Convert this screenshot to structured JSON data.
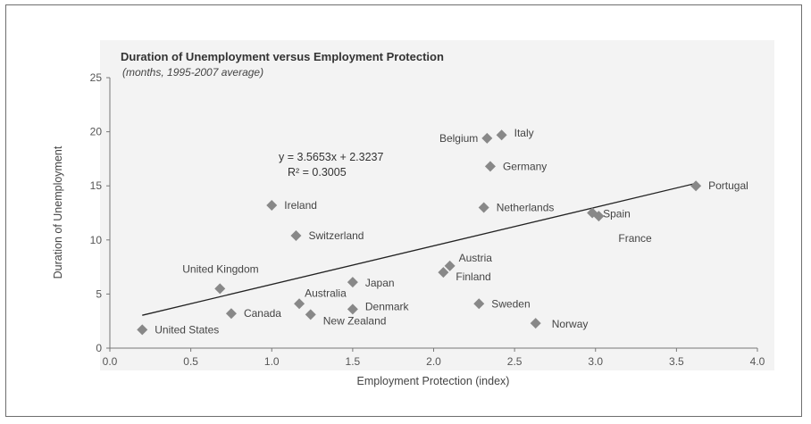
{
  "chart_data": {
    "type": "scatter",
    "title": "Duration of Unemployment versus Employment Protection",
    "subtitle": "(months, 1995-2007 average)",
    "xlabel": "Employment Protection (index)",
    "ylabel": "Duration of Unemployment",
    "xlim": [
      0,
      4
    ],
    "ylim": [
      0,
      25
    ],
    "xticks": [
      "0.0",
      "0.5",
      "1.0",
      "1.5",
      "2.0",
      "2.5",
      "3.0",
      "3.5",
      "4.0"
    ],
    "yticks": [
      "0",
      "5",
      "10",
      "15",
      "20",
      "25"
    ],
    "points": [
      {
        "label": "United States",
        "x": 0.2,
        "y": 1.7
      },
      {
        "label": "United Kingdom",
        "x": 0.68,
        "y": 5.5
      },
      {
        "label": "Canada",
        "x": 0.75,
        "y": 3.2
      },
      {
        "label": "Ireland",
        "x": 1.0,
        "y": 13.2
      },
      {
        "label": "Switzerland",
        "x": 1.15,
        "y": 10.4
      },
      {
        "label": "Australia",
        "x": 1.17,
        "y": 4.1
      },
      {
        "label": "New Zealand",
        "x": 1.24,
        "y": 3.1
      },
      {
        "label": "Japan",
        "x": 1.5,
        "y": 6.1
      },
      {
        "label": "Denmark",
        "x": 1.5,
        "y": 3.6
      },
      {
        "label": "Austria",
        "x": 2.1,
        "y": 7.6
      },
      {
        "label": "Finland",
        "x": 2.06,
        "y": 7.0
      },
      {
        "label": "Belgium",
        "x": 2.33,
        "y": 19.4
      },
      {
        "label": "Italy",
        "x": 2.42,
        "y": 19.7
      },
      {
        "label": "Germany",
        "x": 2.35,
        "y": 16.8
      },
      {
        "label": "Netherlands",
        "x": 2.31,
        "y": 13.0
      },
      {
        "label": "Sweden",
        "x": 2.28,
        "y": 4.1
      },
      {
        "label": "Norway",
        "x": 2.63,
        "y": 2.3
      },
      {
        "label": "Spain",
        "x": 2.98,
        "y": 12.5
      },
      {
        "label": "France",
        "x": 3.02,
        "y": 12.2
      },
      {
        "label": "Portugal",
        "x": 3.62,
        "y": 15.0
      }
    ],
    "trendline": {
      "slope": 3.5653,
      "intercept": 2.3237,
      "x_range": [
        0.2,
        3.62
      ]
    },
    "equation": "y = 3.5653x + 2.3237",
    "r_squared": "R² = 0.3005",
    "grid": false,
    "marker_color": "#888888",
    "line_color": "#222222"
  }
}
